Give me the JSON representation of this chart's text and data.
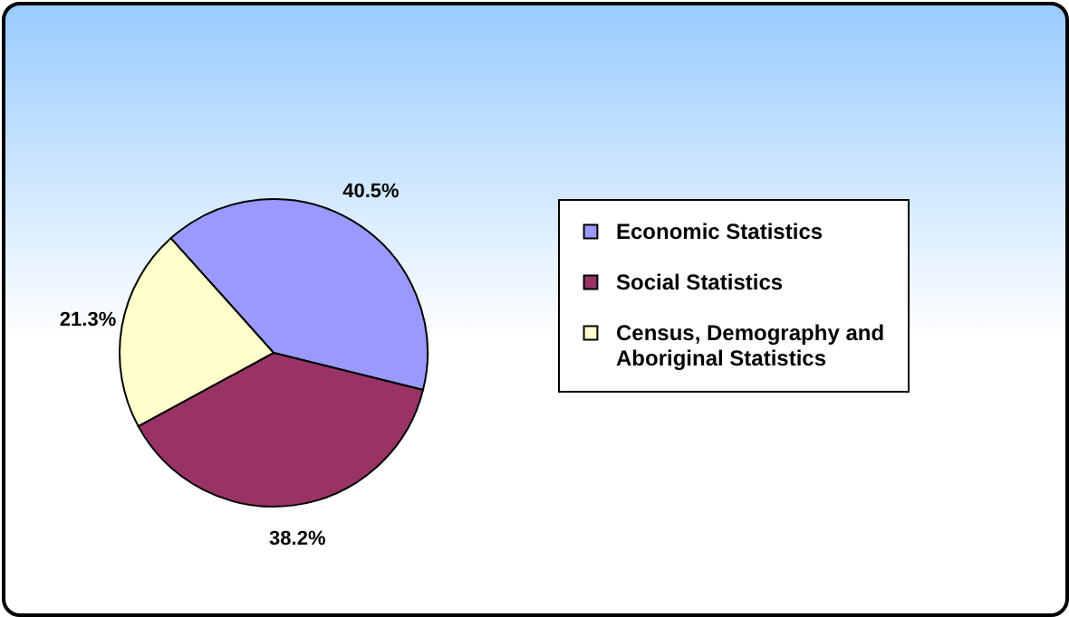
{
  "chart_data": {
    "type": "pie",
    "categories": [
      "Economic Statistics",
      "Social Statistics",
      "Census, Demography and Aboriginal Statistics"
    ],
    "values": [
      40.5,
      38.2,
      21.3
    ],
    "colors": [
      "#9999ff",
      "#993366",
      "#ffffcc"
    ],
    "value_labels": [
      "40.5%",
      "38.2%",
      "21.3%"
    ],
    "legend": "right"
  }
}
